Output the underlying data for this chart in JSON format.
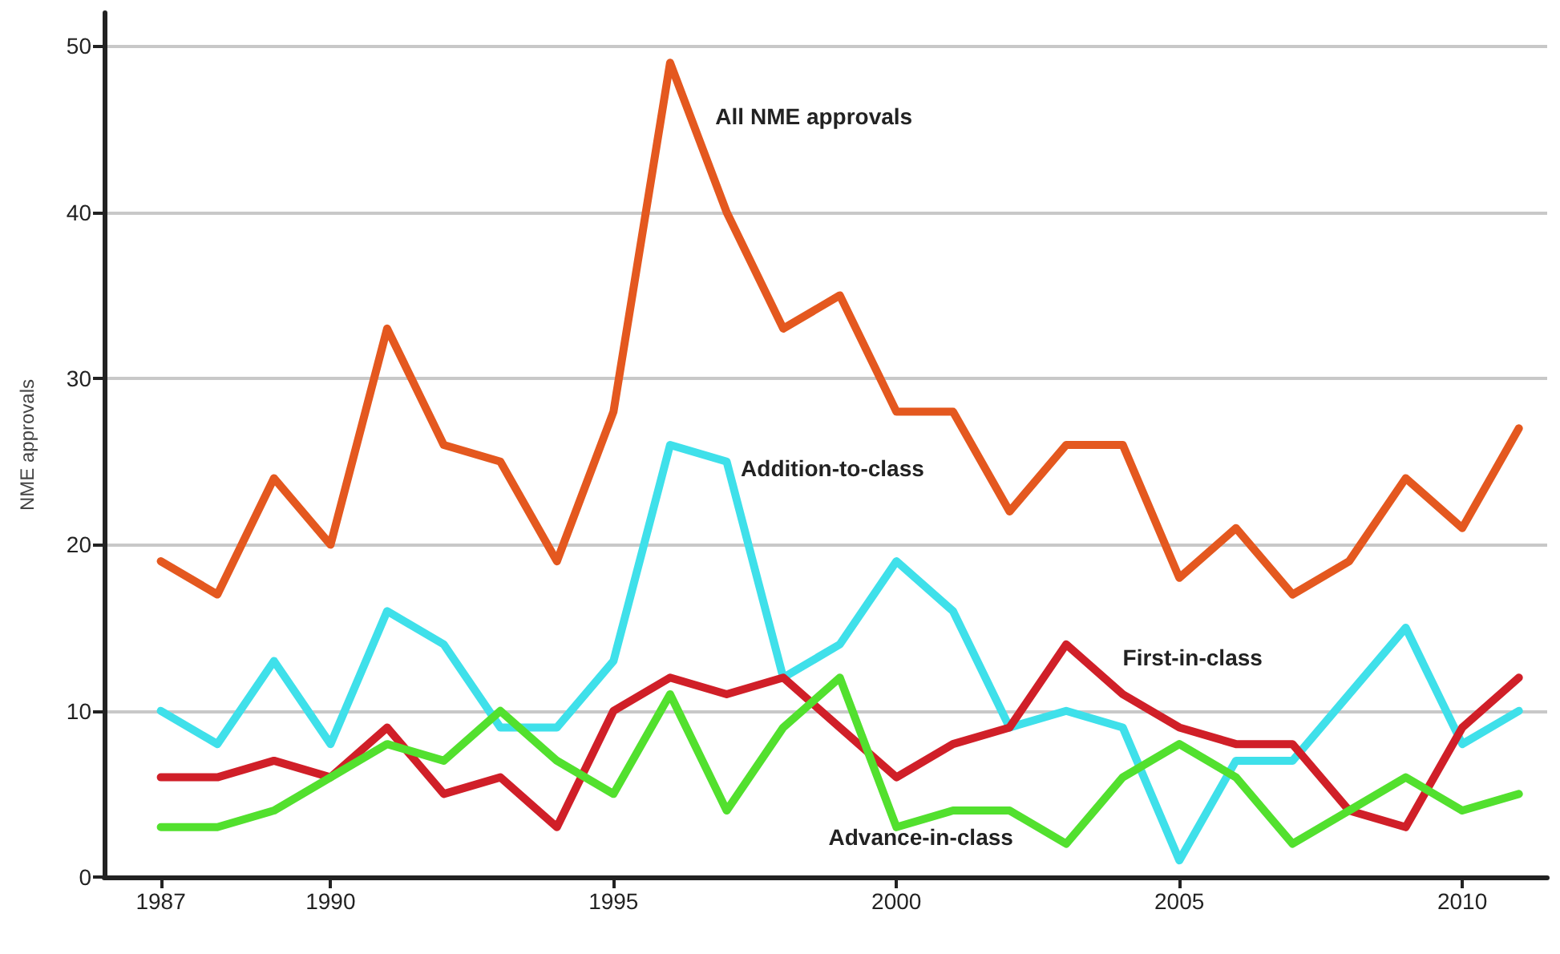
{
  "chart_data": {
    "type": "line",
    "ylabel": "NME approvals",
    "x": [
      1987,
      1988,
      1989,
      1990,
      1991,
      1992,
      1993,
      1994,
      1995,
      1996,
      1997,
      1998,
      1999,
      2000,
      2001,
      2002,
      2003,
      2004,
      2005,
      2006,
      2007,
      2008,
      2009,
      2010,
      2011
    ],
    "series": [
      {
        "name": "All NME approvals",
        "color": "#e4581f",
        "values": [
          19,
          17,
          24,
          20,
          33,
          26,
          25,
          19,
          28,
          49,
          40,
          33,
          35,
          28,
          28,
          22,
          26,
          26,
          18,
          21,
          17,
          19,
          24,
          21,
          27
        ]
      },
      {
        "name": "Addition-to-class",
        "color": "#3fe0ea",
        "values": [
          10,
          8,
          13,
          8,
          16,
          14,
          9,
          9,
          13,
          26,
          25,
          12,
          14,
          19,
          16,
          9,
          10,
          9,
          1,
          7,
          7,
          11,
          15,
          8,
          10
        ]
      },
      {
        "name": "First-in-class",
        "color": "#d01f28",
        "values": [
          6,
          6,
          7,
          6,
          9,
          5,
          6,
          3,
          10,
          12,
          11,
          12,
          9,
          6,
          8,
          9,
          14,
          11,
          9,
          8,
          8,
          4,
          3,
          9,
          12
        ]
      },
      {
        "name": "Advance-in-class",
        "color": "#52e02e",
        "values": [
          3,
          3,
          4,
          6,
          8,
          7,
          10,
          7,
          5,
          11,
          4,
          9,
          12,
          3,
          4,
          4,
          2,
          6,
          8,
          6,
          2,
          4,
          6,
          4,
          5
        ]
      }
    ],
    "xlim": [
      1986,
      2011.5
    ],
    "xticks": [
      1987,
      1990,
      1995,
      2000,
      2005,
      2010
    ],
    "ylim": [
      0,
      52
    ],
    "yticks": [
      0,
      10,
      20,
      30,
      40,
      50
    ],
    "grid": "y",
    "legend": false,
    "marker": "none",
    "line_style": "solid"
  }
}
